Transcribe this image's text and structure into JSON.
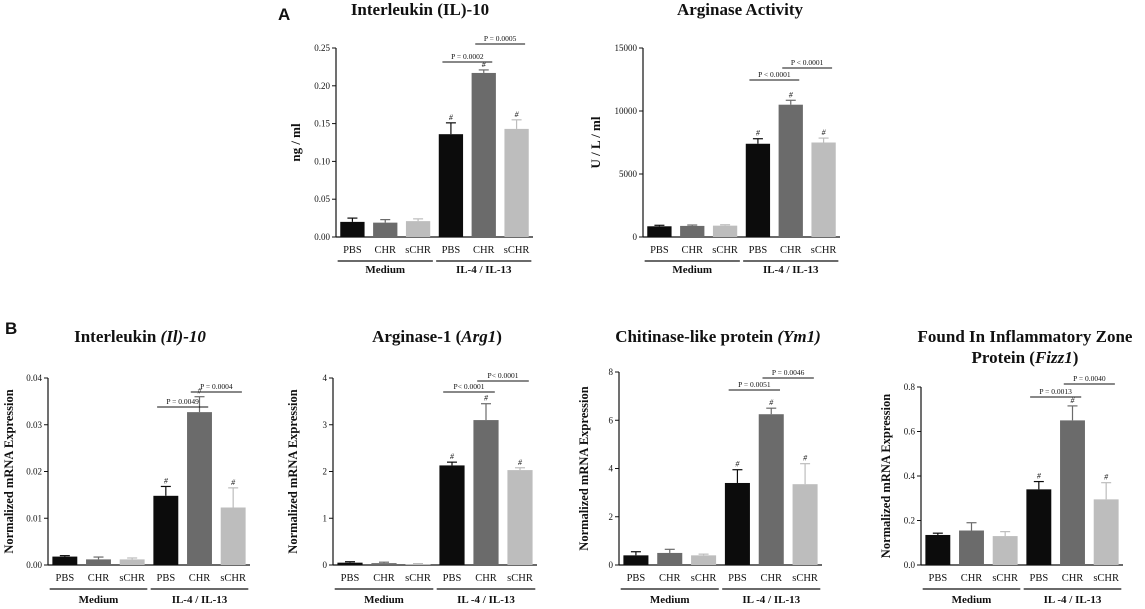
{
  "panels": {
    "a": "A",
    "b": "B"
  },
  "style": {
    "colors": [
      "#0c0c0c",
      "#6b6b6b",
      "#bdbdbd"
    ],
    "axis": "#111111"
  },
  "chart_data": [
    {
      "id": "il10_protein",
      "type": "bar",
      "title": [
        {
          "t": "Interleukin (IL)-10"
        }
      ],
      "ylabel": "ng / ml",
      "ylim": [
        0,
        0.25
      ],
      "yticks": [
        0,
        0.05,
        0.1,
        0.15,
        0.2,
        0.25
      ],
      "ytick_labels": [
        "0.00",
        "0.05",
        "0.10",
        "0.15",
        "0.20",
        "0.25"
      ],
      "categories": [
        "PBS",
        "CHR",
        "sCHR",
        "PBS",
        "CHR",
        "sCHR"
      ],
      "groups": [
        "Medium",
        "IL-4 / IL-13"
      ],
      "values": [
        0.02,
        0.019,
        0.021,
        0.136,
        0.217,
        0.143
      ],
      "errors": [
        0.005,
        0.004,
        0.003,
        0.015,
        0.004,
        0.012
      ],
      "significant": [
        false,
        false,
        false,
        true,
        true,
        true
      ],
      "sig_symbol": "#",
      "comparisons": [
        {
          "from": 3,
          "to": 4,
          "label": "P = 0.0002"
        },
        {
          "from": 4,
          "to": 5,
          "label": "P = 0.0005"
        }
      ]
    },
    {
      "id": "arginase_activity",
      "type": "bar",
      "title": [
        {
          "t": "Arginase Activity"
        }
      ],
      "ylabel": "U / L / ml",
      "ylim": [
        0,
        15000
      ],
      "yticks": [
        0,
        5000,
        10000,
        15000
      ],
      "ytick_labels": [
        "0",
        "5000",
        "10000",
        "15000"
      ],
      "categories": [
        "PBS",
        "CHR",
        "sCHR",
        "PBS",
        "CHR",
        "sCHR"
      ],
      "groups": [
        "Medium",
        "IL-4 / IL-13"
      ],
      "values": [
        850,
        880,
        900,
        7400,
        10500,
        7500
      ],
      "errors": [
        80,
        70,
        70,
        400,
        350,
        350
      ],
      "significant": [
        false,
        false,
        false,
        true,
        true,
        true
      ],
      "sig_symbol": "#",
      "comparisons": [
        {
          "from": 3,
          "to": 4,
          "label": "P < 0.0001"
        },
        {
          "from": 4,
          "to": 5,
          "label": "P < 0.0001"
        }
      ]
    },
    {
      "id": "il10_mrna",
      "type": "bar",
      "title": [
        {
          "t": "Interleukin "
        },
        {
          "t": "(Il)-10",
          "i": true
        }
      ],
      "ylabel": "Normalized mRNA Expression",
      "ylim": [
        0,
        0.04
      ],
      "yticks": [
        0,
        0.01,
        0.02,
        0.03,
        0.04
      ],
      "ytick_labels": [
        "0.00",
        "0.01",
        "0.02",
        "0.03",
        "0.04"
      ],
      "categories": [
        "PBS",
        "CHR",
        "sCHR",
        "PBS",
        "CHR",
        "sCHR"
      ],
      "groups": [
        "Medium",
        "IL-4 / IL-13"
      ],
      "values": [
        0.0018,
        0.0012,
        0.0012,
        0.0148,
        0.0327,
        0.0123
      ],
      "errors": [
        0.0002,
        0.0005,
        0.0003,
        0.002,
        0.0033,
        0.0042
      ],
      "significant": [
        false,
        false,
        false,
        true,
        true,
        true
      ],
      "sig_symbol": "#",
      "comparisons": [
        {
          "from": 3,
          "to": 4,
          "label": "P = 0.0049"
        },
        {
          "from": 4,
          "to": 5,
          "label": "P = 0.0004"
        }
      ]
    },
    {
      "id": "arg1_mrna",
      "type": "bar",
      "title": [
        {
          "t": "Arginase-1 ("
        },
        {
          "t": "Arg1",
          "i": true
        },
        {
          "t": ")"
        }
      ],
      "ylabel": "Normalized mRNA Expression",
      "ylim": [
        0,
        4
      ],
      "yticks": [
        0,
        1,
        2,
        3,
        4
      ],
      "ytick_labels": [
        "0",
        "1",
        "2",
        "3",
        "4"
      ],
      "categories": [
        "PBS",
        "CHR",
        "sCHR",
        "PBS",
        "CHR",
        "sCHR"
      ],
      "groups": [
        "Medium",
        "IL -4 / IL-13"
      ],
      "values": [
        0.05,
        0.04,
        0.02,
        2.13,
        3.1,
        2.03
      ],
      "errors": [
        0.02,
        0.02,
        0.01,
        0.07,
        0.35,
        0.05
      ],
      "significant": [
        false,
        false,
        false,
        true,
        true,
        true
      ],
      "sig_symbol": "#",
      "comparisons": [
        {
          "from": 3,
          "to": 4,
          "label": "P< 0.0001"
        },
        {
          "from": 4,
          "to": 5,
          "label": "P< 0.0001"
        }
      ]
    },
    {
      "id": "ym1_mrna",
      "type": "bar",
      "title": [
        {
          "t": "Chitinase-like protein "
        },
        {
          "t": "(Ym1)",
          "i": true
        }
      ],
      "ylabel": "Normalized mRNA Expression",
      "ylim": [
        0,
        8
      ],
      "yticks": [
        0,
        2,
        4,
        6,
        8
      ],
      "ytick_labels": [
        "0",
        "2",
        "4",
        "6",
        "8"
      ],
      "categories": [
        "PBS",
        "CHR",
        "sCHR",
        "PBS",
        "CHR",
        "sCHR"
      ],
      "groups": [
        "Medium",
        "IL -4 / IL-13"
      ],
      "values": [
        0.4,
        0.5,
        0.4,
        3.4,
        6.25,
        3.35
      ],
      "errors": [
        0.15,
        0.15,
        0.05,
        0.55,
        0.25,
        0.85
      ],
      "significant": [
        false,
        false,
        false,
        true,
        true,
        true
      ],
      "sig_symbol": "#",
      "comparisons": [
        {
          "from": 3,
          "to": 4,
          "label": "P = 0.0051"
        },
        {
          "from": 4,
          "to": 5,
          "label": "P = 0.0046"
        }
      ]
    },
    {
      "id": "fizz1_mrna",
      "type": "bar",
      "title": [
        {
          "t": "Found In Inflammatory Zone"
        }
      ],
      "title2": [
        {
          "t": "Protein ("
        },
        {
          "t": "Fizz1",
          "i": true
        },
        {
          "t": ")"
        }
      ],
      "ylabel": "Normalized mRNA Expression",
      "ylim": [
        0,
        0.8
      ],
      "yticks": [
        0,
        0.2,
        0.4,
        0.6,
        0.8
      ],
      "ytick_labels": [
        "0.0",
        "0.2",
        "0.4",
        "0.6",
        "0.8"
      ],
      "categories": [
        "PBS",
        "CHR",
        "sCHR",
        "PBS",
        "CHR",
        "sCHR"
      ],
      "groups": [
        "Medium",
        "IL -4 / IL-13"
      ],
      "values": [
        0.135,
        0.155,
        0.13,
        0.34,
        0.65,
        0.295
      ],
      "errors": [
        0.008,
        0.035,
        0.02,
        0.035,
        0.065,
        0.075
      ],
      "significant": [
        false,
        false,
        false,
        true,
        true,
        true
      ],
      "sig_symbol": "#",
      "comparisons": [
        {
          "from": 3,
          "to": 4,
          "label": "P = 0.0013"
        },
        {
          "from": 4,
          "to": 5,
          "label": "P = 0.0040"
        }
      ]
    }
  ]
}
